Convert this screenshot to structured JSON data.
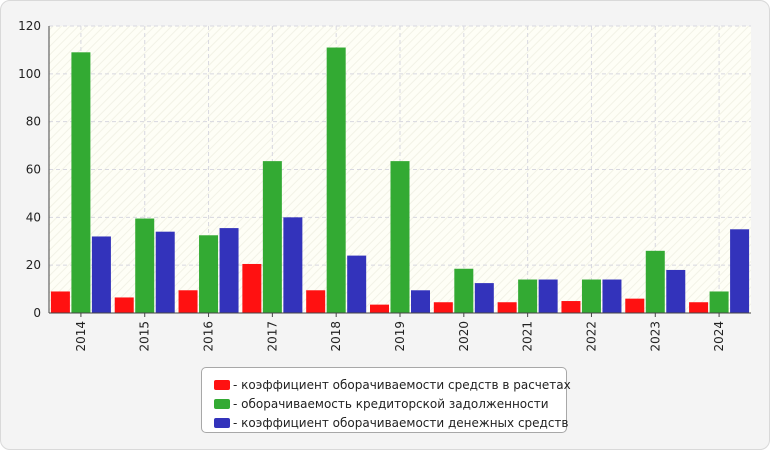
{
  "chart_data": {
    "type": "bar",
    "title": "",
    "xlabel": "",
    "ylabel": "",
    "ylim": [
      0,
      120
    ],
    "yticks": [
      0,
      20,
      40,
      60,
      80,
      100,
      120
    ],
    "grid": true,
    "legend_position": "bottom-center",
    "categories": [
      "2014",
      "2015",
      "2016",
      "2017",
      "2018",
      "2019",
      "2020",
      "2021",
      "2022",
      "2023",
      "2024"
    ],
    "series": [
      {
        "name": "- коэффициент оборачиваемости средств в расчетах",
        "color": "#ff1111",
        "values": [
          9,
          6.5,
          9.5,
          20.5,
          9.5,
          3.5,
          4.5,
          4.5,
          5,
          6,
          4.5
        ]
      },
      {
        "name": "- оборачиваемость кредиторской задолженности",
        "color": "#33aa33",
        "values": [
          109,
          39.5,
          32.5,
          63.5,
          111,
          63.5,
          18.5,
          14,
          14,
          26,
          9
        ]
      },
      {
        "name": "- коэффициент оборачиваемости денежных средств",
        "color": "#3333bb",
        "values": [
          32,
          34,
          35.5,
          40,
          24,
          9.5,
          12.5,
          14,
          14,
          18,
          35
        ]
      }
    ]
  }
}
